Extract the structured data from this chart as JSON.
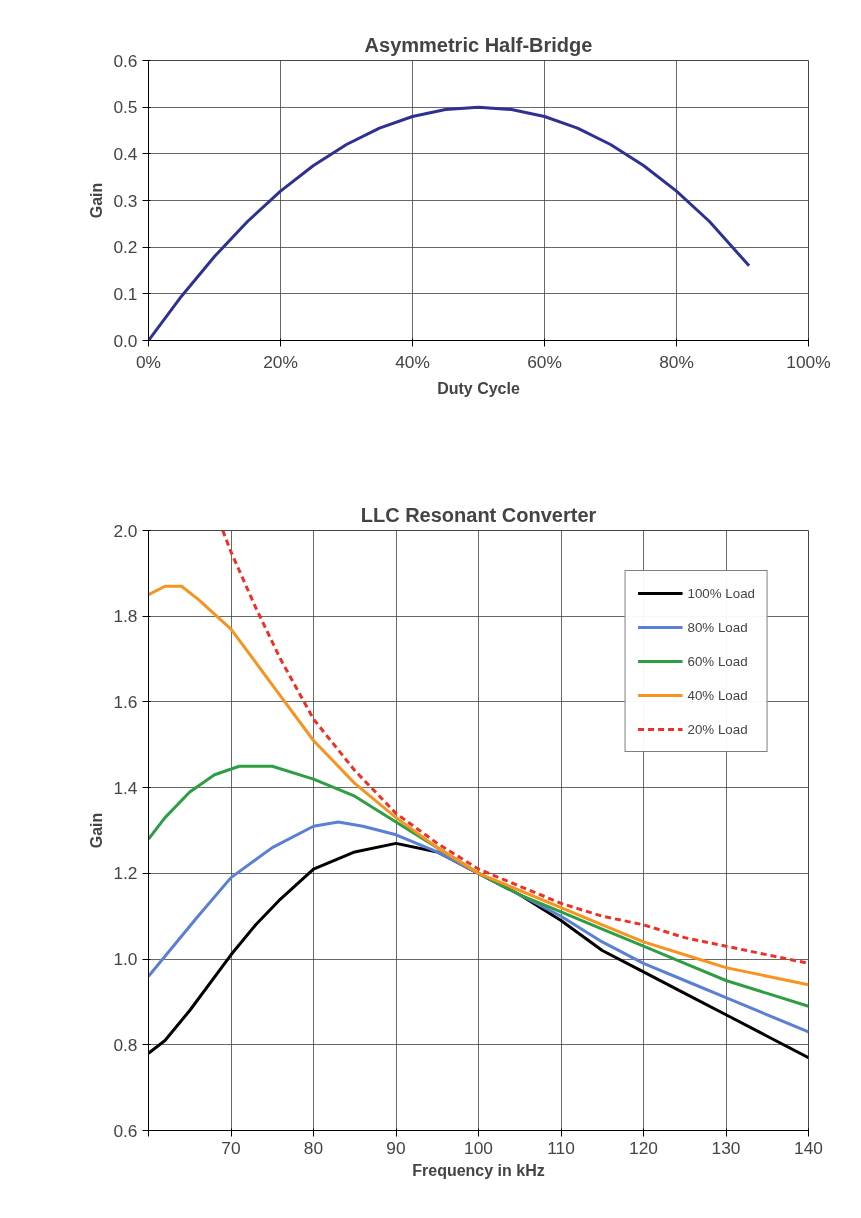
{
  "chart_data": [
    {
      "type": "line",
      "title": "Asymmetric Half-Bridge",
      "xlabel": "Duty Cycle",
      "ylabel": "Gain",
      "xlim": [
        0,
        100
      ],
      "ylim": [
        0,
        0.6
      ],
      "xticks": [
        {
          "value": 0,
          "label": "0%"
        },
        {
          "value": 20,
          "label": "20%"
        },
        {
          "value": 40,
          "label": "40%"
        },
        {
          "value": 60,
          "label": "60%"
        },
        {
          "value": 80,
          "label": "80%"
        },
        {
          "value": 100,
          "label": "100%"
        }
      ],
      "yticks": [
        {
          "value": 0,
          "label": "0.0"
        },
        {
          "value": 0.1,
          "label": "0.1"
        },
        {
          "value": 0.2,
          "label": "0.2"
        },
        {
          "value": 0.3,
          "label": "0.3"
        },
        {
          "value": 0.4,
          "label": "0.4"
        },
        {
          "value": 0.5,
          "label": "0.5"
        },
        {
          "value": 0.6,
          "label": "0.6"
        }
      ],
      "grid": true,
      "legend": false,
      "marker": "none",
      "series": [
        {
          "color": "#2e3192",
          "line_style": "solid",
          "x": [
            0,
            5,
            10,
            15,
            20,
            25,
            30,
            35,
            40,
            45,
            50,
            55,
            60,
            65,
            70,
            75,
            80,
            85,
            91
          ],
          "values": [
            0,
            0.095,
            0.18,
            0.255,
            0.32,
            0.375,
            0.42,
            0.455,
            0.48,
            0.495,
            0.5,
            0.495,
            0.48,
            0.455,
            0.42,
            0.375,
            0.32,
            0.255,
            0.16
          ]
        }
      ]
    },
    {
      "type": "line",
      "title": "LLC Resonant Converter",
      "xlabel": "Frequency in kHz",
      "ylabel": "Gain",
      "xlim": [
        60,
        140
      ],
      "ylim": [
        0.6,
        2.0
      ],
      "xticks": [
        {
          "value": 60,
          "label": null
        },
        70,
        80,
        90,
        100,
        110,
        120,
        130,
        140
      ],
      "yticks": [
        {
          "value": 0.6,
          "label": "0.6"
        },
        {
          "value": 0.8,
          "label": "0.8"
        },
        {
          "value": 1.0,
          "label": "1.0"
        },
        {
          "value": 1.2,
          "label": "1.2"
        },
        {
          "value": 1.4,
          "label": "1.4"
        },
        {
          "value": 1.6,
          "label": "1.6"
        },
        {
          "value": 1.8,
          "label": "1.8"
        },
        {
          "value": 2.0,
          "label": "2.0"
        }
      ],
      "grid": true,
      "legend": "top right",
      "marker": "none",
      "series": [
        {
          "name": "100% Load",
          "color": "#000000",
          "line_style": "solid",
          "x": [
            60,
            62,
            65,
            70,
            73,
            76,
            80,
            85,
            90,
            95,
            100,
            105,
            110,
            115,
            120,
            125,
            130,
            135,
            140
          ],
          "values": [
            0.78,
            0.81,
            0.88,
            1.01,
            1.08,
            1.14,
            1.21,
            1.25,
            1.27,
            1.25,
            1.2,
            1.15,
            1.09,
            1.02,
            0.97,
            0.92,
            0.87,
            0.82,
            0.77
          ]
        },
        {
          "name": "80% Load",
          "color": "#5b7fd4",
          "line_style": "solid",
          "x": [
            60,
            63,
            66,
            70,
            75,
            80,
            83,
            86,
            90,
            95,
            100,
            110,
            115,
            120,
            125,
            130,
            135,
            140
          ],
          "values": [
            0.96,
            1.03,
            1.1,
            1.19,
            1.26,
            1.31,
            1.32,
            1.31,
            1.29,
            1.25,
            1.2,
            1.1,
            1.04,
            0.99,
            0.95,
            0.91,
            0.87,
            0.83
          ]
        },
        {
          "name": "60% Load",
          "color": "#2e9e44",
          "line_style": "solid",
          "x": [
            60,
            62,
            65,
            68,
            71,
            75,
            80,
            85,
            90,
            95,
            100,
            105,
            110,
            115,
            120,
            125,
            130,
            135,
            140
          ],
          "values": [
            1.28,
            1.33,
            1.39,
            1.43,
            1.45,
            1.45,
            1.42,
            1.38,
            1.32,
            1.26,
            1.2,
            1.15,
            1.11,
            1.07,
            1.03,
            0.99,
            0.95,
            0.92,
            0.89
          ]
        },
        {
          "name": "40% Load",
          "color": "#f7931e",
          "line_style": "solid",
          "x": [
            60,
            62,
            64,
            66,
            70,
            75,
            80,
            85,
            90,
            95,
            100,
            105,
            110,
            115,
            120,
            125,
            130,
            135,
            140
          ],
          "values": [
            1.85,
            1.87,
            1.87,
            1.84,
            1.77,
            1.64,
            1.51,
            1.41,
            1.33,
            1.26,
            1.2,
            1.16,
            1.12,
            1.08,
            1.04,
            1.01,
            0.98,
            0.96,
            0.94
          ]
        },
        {
          "name": "20% Load",
          "color": "#ee3124",
          "line_style": "dashed",
          "x": [
            69,
            70,
            73,
            76,
            80,
            85,
            90,
            95,
            100,
            105,
            110,
            115,
            120,
            125,
            130,
            135,
            140
          ],
          "values": [
            2.0,
            1.95,
            1.82,
            1.7,
            1.56,
            1.44,
            1.34,
            1.27,
            1.21,
            1.17,
            1.13,
            1.1,
            1.08,
            1.05,
            1.03,
            1.01,
            0.99
          ]
        }
      ]
    }
  ]
}
